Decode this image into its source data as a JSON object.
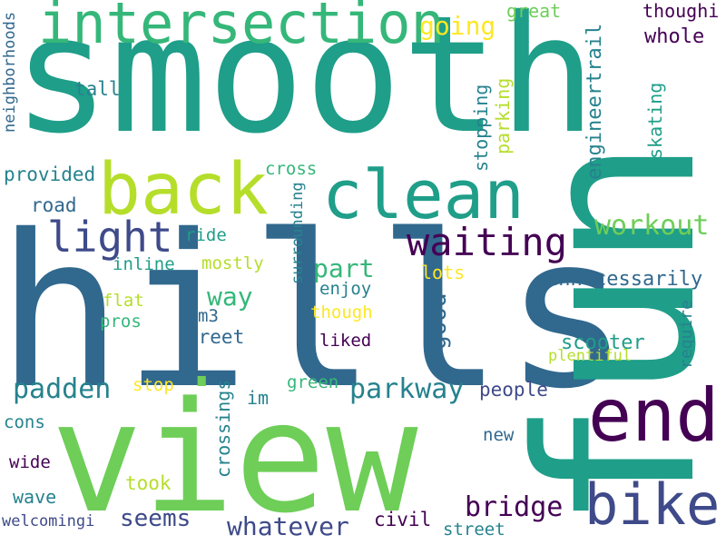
{
  "palette": {
    "dark_purple": "#440154",
    "indigo": "#3e4a89",
    "steel_blue": "#31688e",
    "teal": "#26828e",
    "sea_green": "#1f9e89",
    "green": "#35b779",
    "light_green": "#6ece58",
    "yellow_green": "#b5de2b",
    "yellow": "#fde725"
  },
  "words": [
    {
      "id": "smooth",
      "text": "smooth"
    },
    {
      "id": "hills",
      "text": "hills"
    },
    {
      "id": "view",
      "text": "view"
    },
    {
      "id": "fun",
      "text": "fun"
    },
    {
      "id": "intersection",
      "text": "intersection"
    },
    {
      "id": "back",
      "text": "back"
    },
    {
      "id": "clean",
      "text": "clean"
    },
    {
      "id": "end",
      "text": "end"
    },
    {
      "id": "bike",
      "text": "bike"
    },
    {
      "id": "light",
      "text": "light"
    },
    {
      "id": "waiting",
      "text": "waiting"
    },
    {
      "id": "workout",
      "text": "workout"
    },
    {
      "id": "part",
      "text": "part"
    },
    {
      "id": "way",
      "text": "way"
    },
    {
      "id": "padden",
      "text": "padden"
    },
    {
      "id": "parkway",
      "text": "parkway"
    },
    {
      "id": "bridge",
      "text": "bridge"
    },
    {
      "id": "whatever",
      "text": "whatever"
    },
    {
      "id": "seems",
      "text": "seems"
    },
    {
      "id": "going",
      "text": "going"
    },
    {
      "id": "great",
      "text": "great"
    },
    {
      "id": "whole",
      "text": "whole"
    },
    {
      "id": "thoughi",
      "text": "thoughi"
    },
    {
      "id": "tall",
      "text": "tall"
    },
    {
      "id": "provided",
      "text": "provided"
    },
    {
      "id": "road",
      "text": "road"
    },
    {
      "id": "cross",
      "text": "cross"
    },
    {
      "id": "ride",
      "text": "ride"
    },
    {
      "id": "inline",
      "text": "inline"
    },
    {
      "id": "mostly",
      "text": "mostly"
    },
    {
      "id": "flat",
      "text": "flat"
    },
    {
      "id": "pros",
      "text": "pros"
    },
    {
      "id": "m3",
      "text": "m3"
    },
    {
      "id": "enjoy",
      "text": "enjoy"
    },
    {
      "id": "though",
      "text": "though"
    },
    {
      "id": "lots",
      "text": "lots"
    },
    {
      "id": "unnecessarily",
      "text": "unnecessarily"
    },
    {
      "id": "greet",
      "text": "greet"
    },
    {
      "id": "liked",
      "text": "liked"
    },
    {
      "id": "scooter",
      "text": "scooter"
    },
    {
      "id": "plentiful",
      "text": "plentiful"
    },
    {
      "id": "stop",
      "text": "stop"
    },
    {
      "id": "green",
      "text": "green"
    },
    {
      "id": "im",
      "text": "im"
    },
    {
      "id": "people",
      "text": "people"
    },
    {
      "id": "cons",
      "text": "cons"
    },
    {
      "id": "new",
      "text": "new"
    },
    {
      "id": "wide",
      "text": "wide"
    },
    {
      "id": "took",
      "text": "took"
    },
    {
      "id": "wave",
      "text": "wave"
    },
    {
      "id": "civil",
      "text": "civil"
    },
    {
      "id": "welcomingi",
      "text": "welcomingi"
    },
    {
      "id": "street",
      "text": "street"
    },
    {
      "id": "neighborhoods",
      "text": "neighborhoods"
    },
    {
      "id": "surrounding",
      "text": "surrounding"
    },
    {
      "id": "crossings",
      "text": "crossings"
    },
    {
      "id": "good",
      "text": "good"
    },
    {
      "id": "stopping",
      "text": "stopping"
    },
    {
      "id": "parking",
      "text": "parking"
    },
    {
      "id": "engineertrail",
      "text": "engineertrail"
    },
    {
      "id": "skating",
      "text": "skating"
    },
    {
      "id": "require",
      "text": "require"
    },
    {
      "id": "dot",
      "text": "."
    }
  ]
}
